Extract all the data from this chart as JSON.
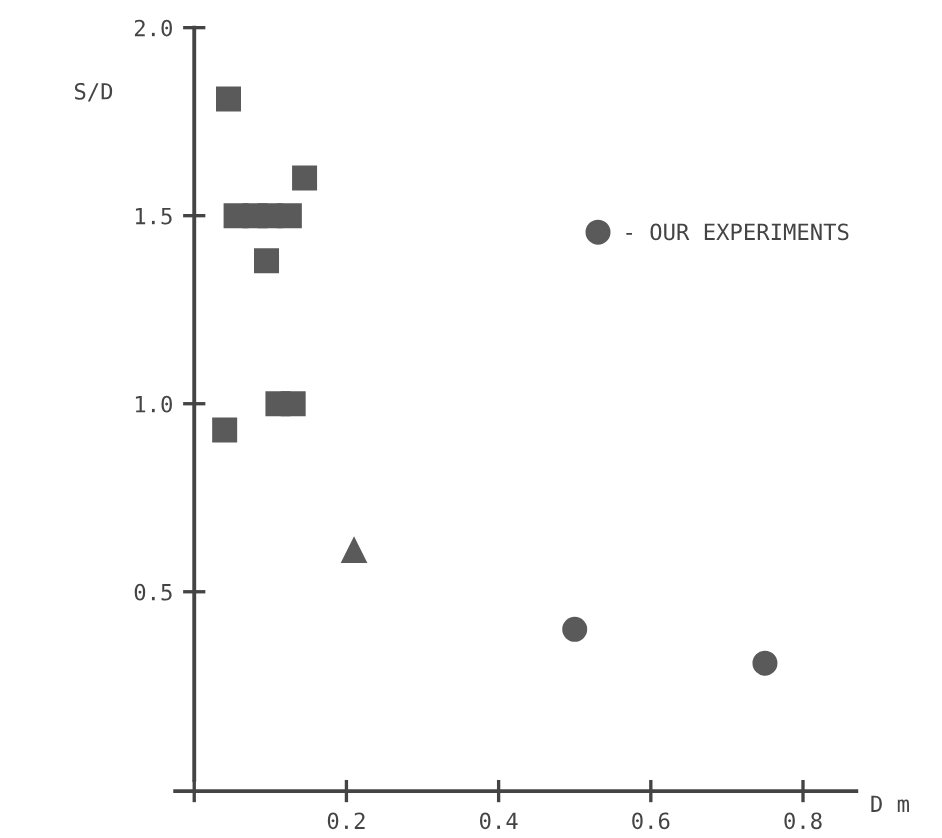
{
  "chart_data": {
    "type": "scatter",
    "xlabel": "D m",
    "ylabel": "S/D",
    "series": [
      {
        "color": "#5a5a5a",
        "marker": "square",
        "x": [
          0.045,
          0.145,
          0.055,
          0.08,
          0.1,
          0.125,
          0.095,
          0.11,
          0.13,
          0.04
        ],
        "values": [
          1.81,
          1.6,
          1.5,
          1.5,
          1.5,
          1.5,
          1.38,
          1.0,
          1.0,
          0.93
        ]
      },
      {
        "color": "#5a5a5a",
        "marker": "triangle",
        "x": [
          0.21
        ],
        "values": [
          0.61
        ]
      },
      {
        "name": "- OUR EXPERIMENTS",
        "color": "#5a5a5a",
        "marker": "circle",
        "x": [
          0.5,
          0.75
        ],
        "values": [
          0.4,
          0.31
        ]
      }
    ],
    "xlim": [
      -0.025,
      0.87
    ],
    "ylim": [
      -0.03,
      2.0
    ],
    "xticks": [
      {
        "value": 0,
        "label": null
      },
      0.2,
      0.4,
      0.6,
      0.8
    ],
    "yticks": [
      0.5,
      {
        "value": 1,
        "label": "1.0"
      },
      1.5,
      {
        "value": 2,
        "label": "2.0"
      }
    ],
    "grid": false,
    "legend": "right"
  }
}
